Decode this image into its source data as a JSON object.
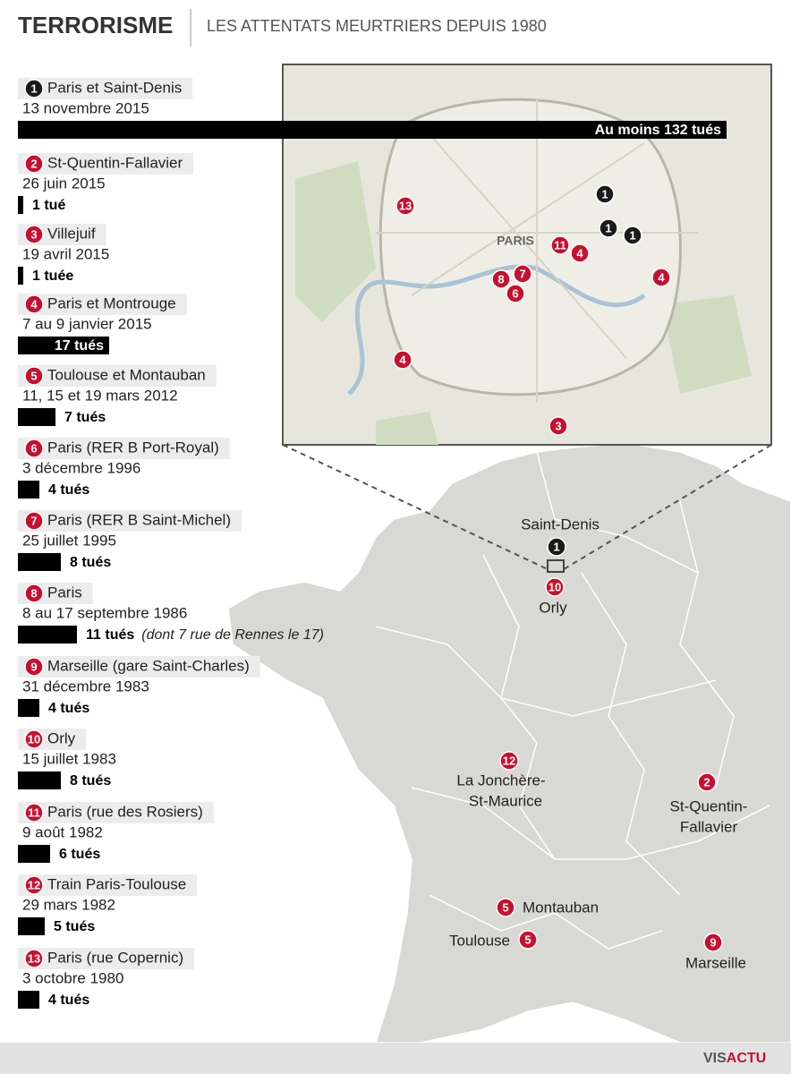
{
  "header": {
    "title": "TERRORISME",
    "subtitle": "LES ATTENTATS MEURTRIERS DEPUIS 1980"
  },
  "attacks": [
    {
      "num": "1",
      "place": "Paris et Saint-Denis",
      "date": "13 novembre 2015",
      "killed": 132,
      "killed_label": "Au moins 132 tués"
    },
    {
      "num": "2",
      "place": "St-Quentin-Fallavier",
      "date": "26 juin 2015",
      "killed": 1,
      "killed_label": "1 tué"
    },
    {
      "num": "3",
      "place": "Villejuif",
      "date": "19 avril 2015",
      "killed": 1,
      "killed_label": "1 tuée"
    },
    {
      "num": "4",
      "place": "Paris et Montrouge",
      "date": "7 au 9 janvier 2015",
      "killed": 17,
      "killed_label": "17 tués"
    },
    {
      "num": "5",
      "place": "Toulouse et Montauban",
      "date": "11, 15 et 19 mars 2012",
      "killed": 7,
      "killed_label": "7 tués"
    },
    {
      "num": "6",
      "place": "Paris (RER B Port-Royal)",
      "date": "3 décembre 1996",
      "killed": 4,
      "killed_label": "4 tués"
    },
    {
      "num": "7",
      "place": "Paris (RER B Saint-Michel)",
      "date": "25 juillet 1995",
      "killed": 8,
      "killed_label": "8 tués"
    },
    {
      "num": "8",
      "place": "Paris",
      "date": "8 au 17 septembre 1986",
      "killed": 11,
      "killed_label": "11 tués",
      "note": "(dont 7 rue de Rennes le 17)"
    },
    {
      "num": "9",
      "place": "Marseille (gare Saint-Charles)",
      "date": "31 décembre 1983",
      "killed": 4,
      "killed_label": "4 tués"
    },
    {
      "num": "10",
      "place": "Orly",
      "date": "15 juillet 1983",
      "killed": 8,
      "killed_label": "8 tués"
    },
    {
      "num": "11",
      "place": "Paris (rue des Rosiers)",
      "date": "9 août 1982",
      "killed": 6,
      "killed_label": "6 tués"
    },
    {
      "num": "12",
      "place": "Train Paris-Toulouse",
      "date": "29 mars 1982",
      "killed": 5,
      "killed_label": "5 tués"
    },
    {
      "num": "13",
      "place": "Paris (rue Copernic)",
      "date": "3 octobre 1980",
      "killed": 4,
      "killed_label": "4 tués"
    }
  ],
  "map": {
    "labels": {
      "paris": "PARIS",
      "saint_denis": "Saint-Denis",
      "orly": "Orly",
      "jonchere_1": "La Jonchère-",
      "jonchere_2": "St-Maurice",
      "stquentin_1": "St-Quentin-",
      "stquentin_2": "Fallavier",
      "montauban": "Montauban",
      "toulouse": "Toulouse",
      "marseille": "Marseille"
    }
  },
  "footer": {
    "brand_1": "VIS",
    "brand_2": "ACTU"
  }
}
